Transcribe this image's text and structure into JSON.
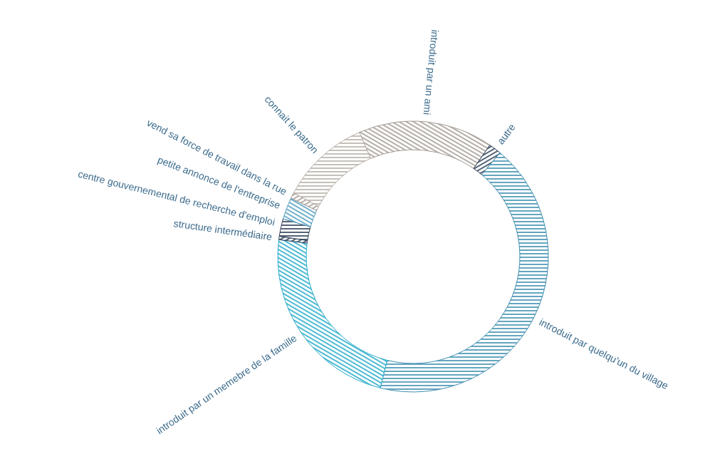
{
  "chart_data": {
    "type": "donut",
    "categories": [
      "introduit par un ami",
      "autre",
      "introduit par quelqu'un du village",
      "introduit par un memebre de la famille",
      "structure intermédiaire",
      "centre gouvernemental de recherche d'emploi",
      "petite annonce de l'entreprise",
      "vend sa force de travail dans la rue",
      "connait le patron"
    ],
    "values": [
      16.1,
      1.5,
      42.8,
      23.1,
      0.4,
      2.1,
      2.6,
      0.7,
      10.7
    ],
    "colors": [
      "#a39a92",
      "#2b3d55",
      "#3f8fb0",
      "#22a9c9",
      "#2b3d55",
      "#2b3d55",
      "#4f9cbc",
      "#a39a92",
      "#b8b0a8"
    ]
  }
}
